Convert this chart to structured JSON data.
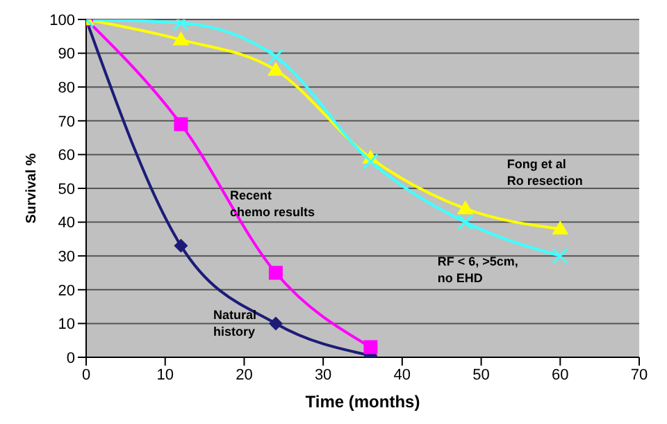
{
  "chart_data": {
    "type": "line",
    "xlabel": "Time (months)",
    "ylabel": "Survival %",
    "xlim": [
      0,
      70
    ],
    "xticks": [
      0,
      10,
      20,
      30,
      40,
      50,
      60,
      70
    ],
    "ylim": [
      0,
      100
    ],
    "yticks": [
      0,
      10,
      20,
      30,
      40,
      50,
      60,
      70,
      80,
      90,
      100
    ],
    "grid": "y",
    "legend": false,
    "series": [
      {
        "name": "Natural history",
        "color": "#1c1c78",
        "marker": "diamond",
        "x": [
          0,
          12,
          24,
          36
        ],
        "values": [
          100,
          33,
          10,
          0.5
        ]
      },
      {
        "name": "Recent chemo results",
        "color": "#ff00ff",
        "marker": "square",
        "x": [
          0,
          12,
          24,
          36
        ],
        "values": [
          100,
          69,
          25,
          3
        ]
      },
      {
        "name": "Fong et al Ro resection",
        "color": "#ffff00",
        "marker": "triangle",
        "x": [
          0,
          12,
          24,
          36,
          48,
          60
        ],
        "values": [
          100,
          94,
          85,
          59,
          44,
          38
        ]
      },
      {
        "name": "RF  < 6, >5cm, no EHD",
        "color": "#40ffff",
        "marker": "cross",
        "x": [
          0,
          12,
          24,
          36,
          48,
          60
        ],
        "values": [
          100,
          99,
          89,
          58,
          40,
          30
        ]
      }
    ]
  }
}
